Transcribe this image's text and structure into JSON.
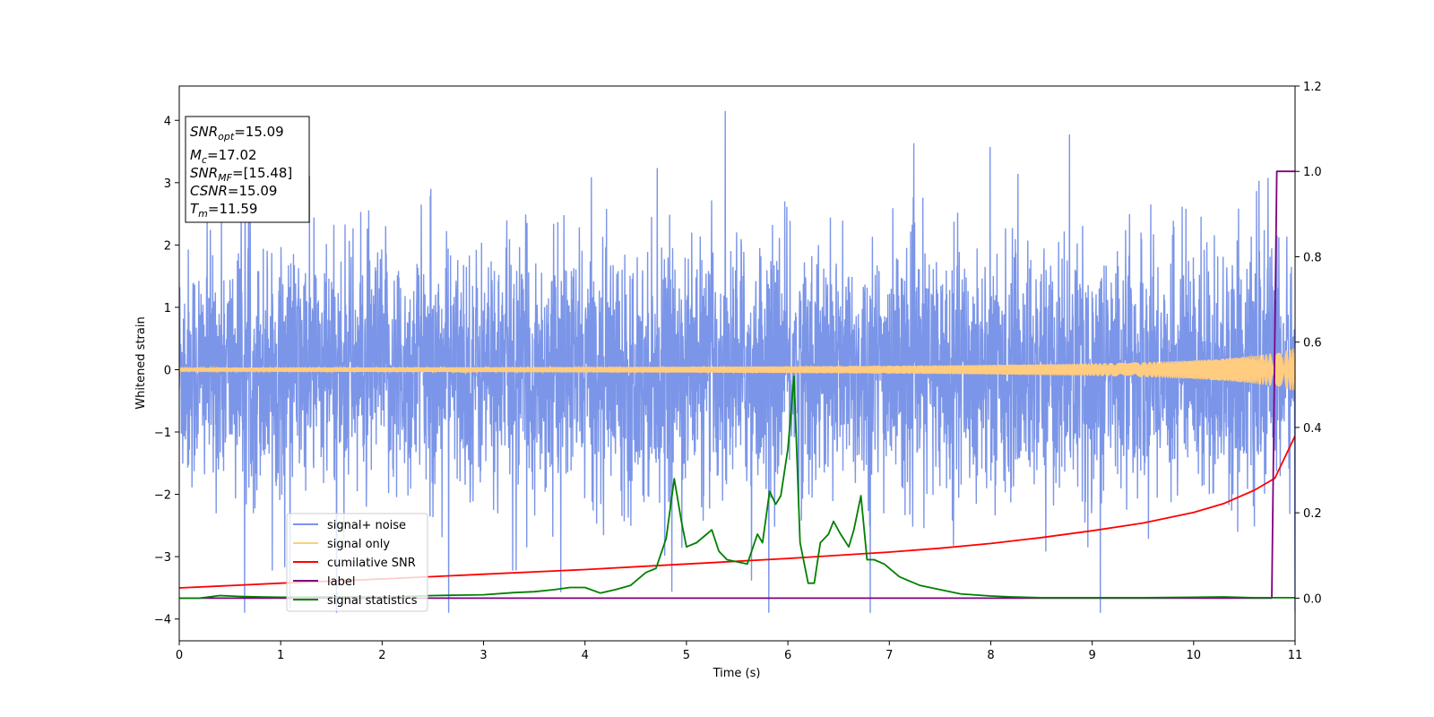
{
  "chart_data": {
    "type": "line",
    "xlabel": "Time (s)",
    "ylabel": "Whitened strain",
    "xlim": [
      0,
      11
    ],
    "ylim_left": [
      -4.35,
      4.55
    ],
    "ylim_right": [
      -0.1,
      1.2
    ],
    "x_ticks": [
      "0",
      "1",
      "2",
      "3",
      "4",
      "5",
      "6",
      "7",
      "8",
      "9",
      "10",
      "11"
    ],
    "y_left_ticks": [
      "−4",
      "−3",
      "−2",
      "−1",
      "0",
      "1",
      "2",
      "3",
      "4"
    ],
    "y_right_ticks": [
      "0.0",
      "0.2",
      "0.4",
      "0.6",
      "0.8",
      "1.0",
      "1.2"
    ],
    "grid": false,
    "legend_position": "lower-left",
    "legend": [
      {
        "label": "signal+ noise",
        "color": "#7b95e8"
      },
      {
        "label": "signal only",
        "color": "#ffcc80"
      },
      {
        "label": "cumilative SNR",
        "color": "#ff0000"
      },
      {
        "label": "label",
        "color": "#800080"
      },
      {
        "label": "signal statistics",
        "color": "#008000"
      }
    ],
    "annotation": [
      {
        "base": "SNR",
        "sub": "opt",
        "value": "=15.09"
      },
      {
        "base": "M",
        "sub": "c",
        "value": "=17.02"
      },
      {
        "base": "SNR",
        "sub": "MF",
        "value": "=[15.48]"
      },
      {
        "base": "CSNR",
        "sub": "",
        "value": "=15.09"
      },
      {
        "base": "T",
        "sub": "m",
        "value": "=11.59"
      }
    ],
    "series": [
      {
        "name": "signal+ noise",
        "axis": "left",
        "color": "#7b95e8",
        "description_range": [
          -3.9,
          4.15
        ]
      },
      {
        "name": "signal only",
        "axis": "left",
        "color": "#ffcc80",
        "amplitude_start": 0.03,
        "amplitude_end": 0.35
      },
      {
        "name": "cumilative SNR",
        "axis": "right",
        "color": "#ff0000",
        "x": [
          0,
          1,
          2,
          3,
          4,
          5,
          6,
          7,
          7.5,
          8,
          8.5,
          9,
          9.5,
          10,
          10.3,
          10.6,
          10.8,
          11
        ],
        "y": [
          0.024,
          0.035,
          0.045,
          0.056,
          0.067,
          0.08,
          0.093,
          0.108,
          0.117,
          0.128,
          0.142,
          0.158,
          0.176,
          0.201,
          0.222,
          0.253,
          0.281,
          0.38
        ]
      },
      {
        "name": "label",
        "axis": "right",
        "color": "#800080",
        "x": [
          0,
          10.77,
          10.82,
          11
        ],
        "y": [
          0,
          0,
          1.0,
          1.0
        ]
      },
      {
        "name": "signal statistics",
        "axis": "right",
        "color": "#008000",
        "x": [
          0,
          0.2,
          0.4,
          0.6,
          0.8,
          1.0,
          1.5,
          2.0,
          2.5,
          3.0,
          3.3,
          3.5,
          3.7,
          3.85,
          4.0,
          4.15,
          4.3,
          4.45,
          4.6,
          4.7,
          4.8,
          4.88,
          4.95,
          5.0,
          5.1,
          5.2,
          5.25,
          5.32,
          5.4,
          5.5,
          5.6,
          5.7,
          5.75,
          5.82,
          5.88,
          5.93,
          6.0,
          6.06,
          6.12,
          6.2,
          6.26,
          6.32,
          6.4,
          6.45,
          6.52,
          6.6,
          6.65,
          6.72,
          6.78,
          6.85,
          6.95,
          7.1,
          7.3,
          7.5,
          7.7,
          8.0,
          8.2,
          8.5,
          9.0,
          9.5,
          10.0,
          10.3,
          10.6,
          10.8,
          11
        ],
        "y": [
          0,
          0,
          0.006,
          0.004,
          0.003,
          0.002,
          0.003,
          0.002,
          0.006,
          0.008,
          0.013,
          0.015,
          0.02,
          0.025,
          0.025,
          0.012,
          0.02,
          0.03,
          0.06,
          0.07,
          0.14,
          0.28,
          0.18,
          0.12,
          0.13,
          0.15,
          0.16,
          0.11,
          0.09,
          0.085,
          0.08,
          0.15,
          0.13,
          0.25,
          0.22,
          0.24,
          0.35,
          0.52,
          0.13,
          0.035,
          0.035,
          0.13,
          0.15,
          0.18,
          0.15,
          0.12,
          0.16,
          0.24,
          0.09,
          0.09,
          0.08,
          0.05,
          0.03,
          0.02,
          0.01,
          0.005,
          0.003,
          0.001,
          0.001,
          0.001,
          0.002,
          0.003,
          0.001,
          0.001,
          0.001
        ]
      }
    ]
  }
}
